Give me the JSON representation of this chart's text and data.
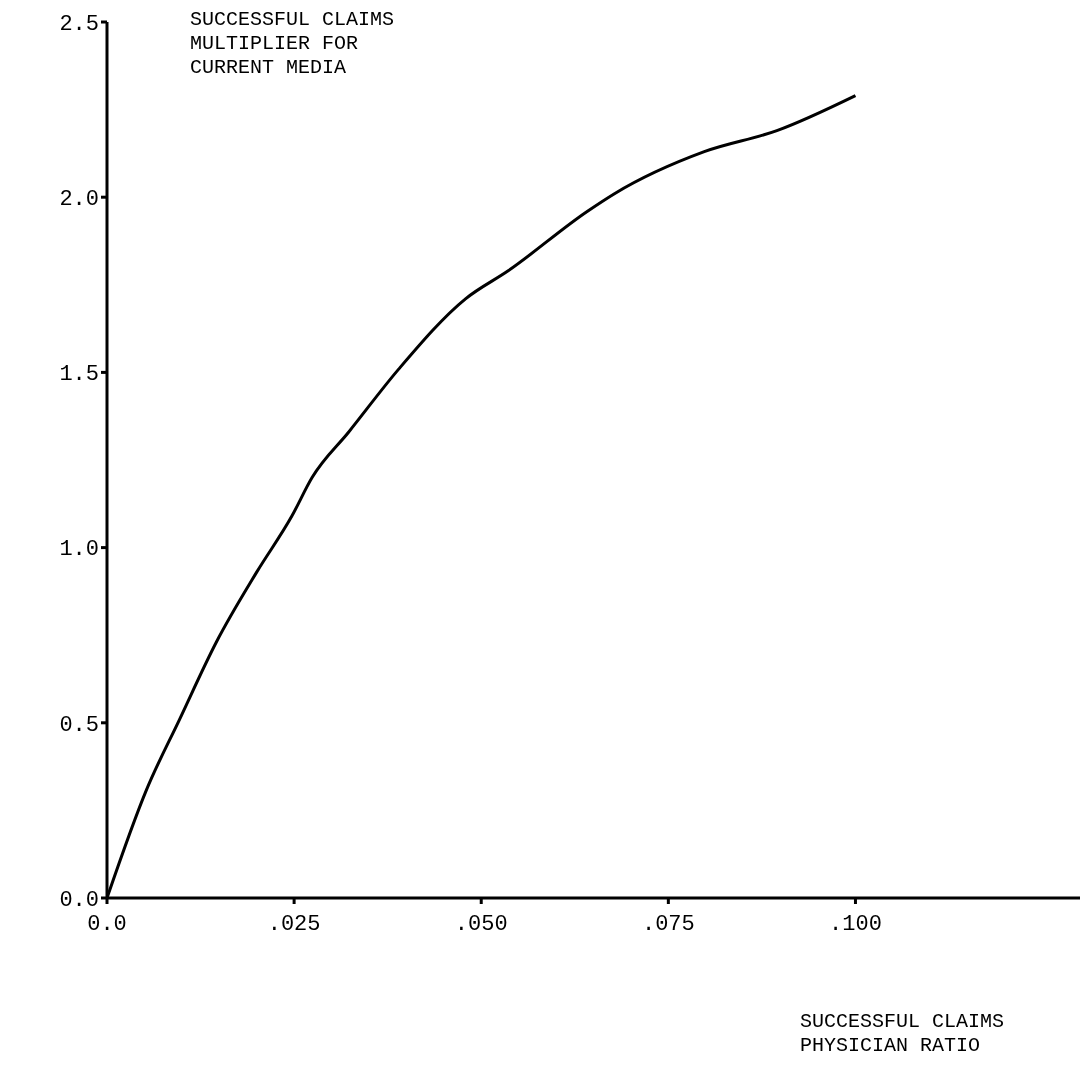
{
  "chart_data": {
    "type": "line",
    "xlabel": "SUCCESSFUL CLAIMS\nPHYSICIAN RATIO",
    "ylabel": "SUCCESSFUL CLAIMS\nMULTIPLIER FOR\nCURRENT MEDIA",
    "x": [
      0,
      0.0053,
      0.0097,
      0.0146,
      0.02,
      0.0247,
      0.0274,
      0.0323,
      0.039,
      0.0479,
      0.0536,
      0.0642,
      0.0678,
      0.0798,
      0.0895,
      0.1
    ],
    "series": [
      {
        "color": "#000000",
        "values": [
          0,
          0.31,
          0.51,
          0.73,
          0.93,
          1.09,
          1.2,
          1.33,
          1.51,
          1.71,
          1.79,
          1.96,
          2.01,
          2.13,
          2.19,
          2.29
        ]
      }
    ],
    "xlim": [
      0,
      0.13
    ],
    "xticks": [
      {
        "value": 0,
        "label": "0.0"
      },
      {
        "value": 0.025,
        "label": ".025"
      },
      {
        "value": 0.05,
        "label": ".050"
      },
      {
        "value": 0.075,
        "label": ".075"
      },
      {
        "value": 0.1,
        "label": ".100"
      }
    ],
    "ylim": [
      0,
      2.5
    ],
    "yticks": [
      {
        "value": 0,
        "label": "0.0"
      },
      {
        "value": 0.5,
        "label": "0.5"
      },
      {
        "value": 1,
        "label": "1.0"
      },
      {
        "value": 1.5,
        "label": "1.5"
      },
      {
        "value": 2,
        "label": "2.0"
      },
      {
        "value": 2.5,
        "label": "2.5"
      }
    ]
  }
}
